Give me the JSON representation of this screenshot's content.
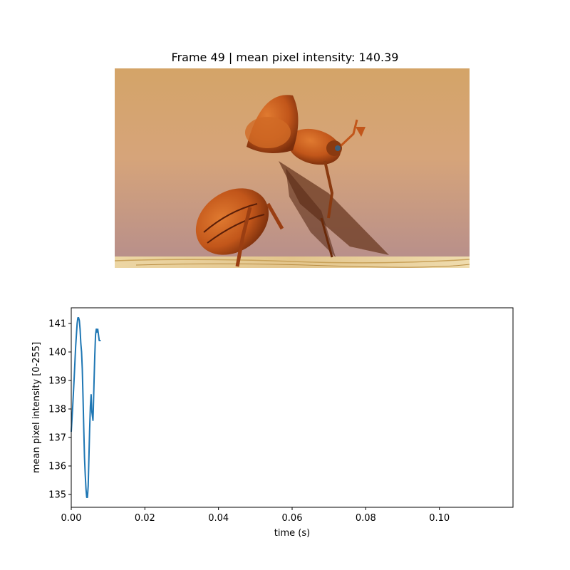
{
  "figure": {
    "title": "Frame 49 | mean pixel intensity: 140.39"
  },
  "image": {
    "subject": "beetle-taking-off-photo",
    "colors": {
      "bg_top": "#d4a468",
      "bg_mid": "#d6a47a",
      "bg_bottom": "#b58d8c",
      "shell": "#c2561a",
      "shell_dark": "#7a2e0c",
      "wood": "#e3c58c"
    }
  },
  "chart_data": {
    "type": "line",
    "xlabel": "time (s)",
    "ylabel": "mean pixel intensity [0-255]",
    "xlim": [
      0.0,
      0.12
    ],
    "ylim": [
      134.55,
      141.55
    ],
    "xticks": [
      0.0,
      0.02,
      0.04,
      0.06,
      0.08,
      0.1
    ],
    "xtick_labels": [
      "0.00",
      "0.02",
      "0.04",
      "0.06",
      "0.08",
      "0.10"
    ],
    "yticks": [
      135,
      136,
      137,
      138,
      139,
      140,
      141
    ],
    "ytick_labels": [
      "135",
      "136",
      "137",
      "138",
      "139",
      "140",
      "141"
    ],
    "grid": false,
    "line_color": "#1f77b4",
    "series": [
      {
        "x": [
          0.0,
          0.0004,
          0.0008,
          0.0012,
          0.0016,
          0.0018,
          0.002,
          0.0022,
          0.0024,
          0.0026,
          0.0028,
          0.003,
          0.0032,
          0.0034,
          0.0036,
          0.0038,
          0.004,
          0.0042,
          0.0044,
          0.0046,
          0.0048,
          0.005,
          0.0052,
          0.0054,
          0.0056,
          0.0058,
          0.0059,
          0.006,
          0.0062,
          0.0064,
          0.0066,
          0.0068,
          0.007,
          0.0072,
          0.0074,
          0.0076,
          0.0078,
          0.008
        ],
        "y": [
          137.2,
          138.1,
          139.1,
          140.2,
          141.0,
          141.2,
          141.2,
          141.1,
          140.8,
          140.3,
          140.0,
          139.4,
          138.4,
          137.3,
          136.3,
          135.7,
          135.2,
          134.9,
          134.9,
          135.3,
          136.3,
          137.3,
          138.1,
          138.5,
          137.9,
          137.7,
          137.6,
          138.0,
          139.0,
          139.9,
          140.6,
          140.8,
          140.7,
          140.8,
          140.6,
          140.4,
          140.4,
          140.4
        ]
      }
    ]
  }
}
